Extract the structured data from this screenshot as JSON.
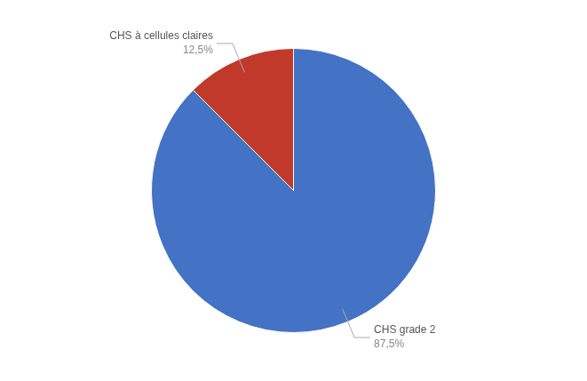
{
  "chart_data": {
    "type": "pie",
    "categories": [
      "CHS grade 2",
      "CHS à cellules claires"
    ],
    "values": [
      87.5,
      12.5
    ],
    "value_labels": [
      "87,5%",
      "12,5%"
    ],
    "colors": [
      "#4472C4",
      "#C0392B"
    ],
    "data_labels": true
  }
}
